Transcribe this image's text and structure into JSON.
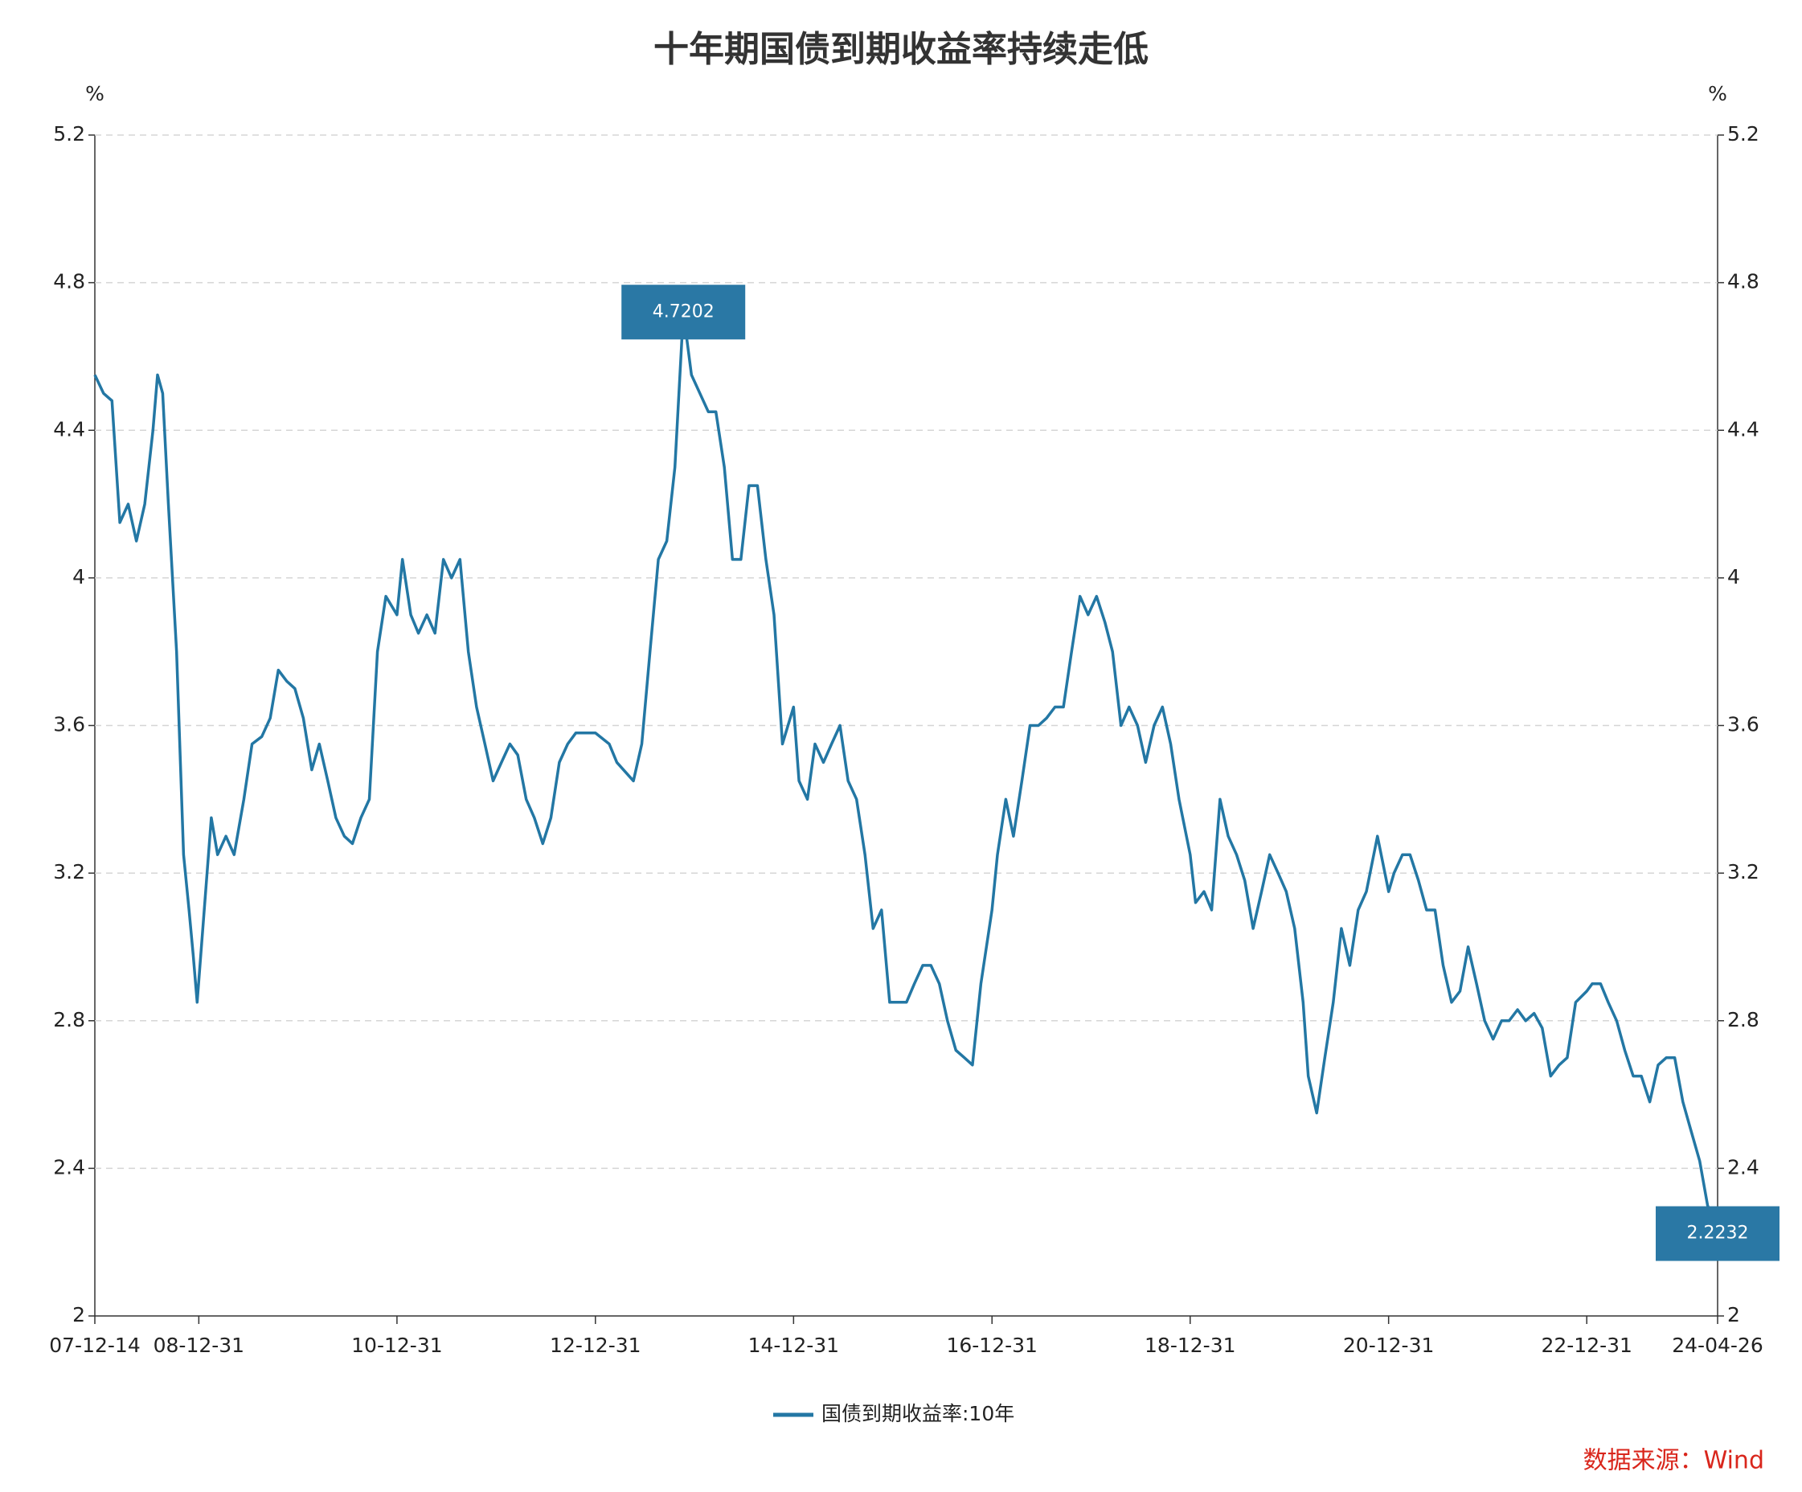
{
  "chart_data": {
    "type": "line",
    "title": "十年期国债到期收益率持续走低",
    "ylabel": "%",
    "y2label": "%",
    "source": "数据来源：Wind",
    "x": [
      "07-12-14",
      "08-01-15",
      "08-02-15",
      "08-03-15",
      "08-04-15",
      "08-05-15",
      "08-06-15",
      "08-07-15",
      "08-08-01",
      "08-08-20",
      "08-09-10",
      "08-10-10",
      "08-11-05",
      "08-11-25",
      "08-12-10",
      "08-12-25",
      "09-01-20",
      "09-02-15",
      "09-03-10",
      "09-04-10",
      "09-05-10",
      "09-06-15",
      "09-07-15",
      "09-08-20",
      "09-09-20",
      "09-10-20",
      "09-11-20",
      "09-12-20",
      "10-01-20",
      "10-02-20",
      "10-03-20",
      "10-04-20",
      "10-05-20",
      "10-06-20",
      "10-07-20",
      "10-08-20",
      "10-09-20",
      "10-10-20",
      "10-11-20",
      "10-12-31",
      "11-01-20",
      "11-02-20",
      "11-03-20",
      "11-04-20",
      "11-05-20",
      "11-06-20",
      "11-07-20",
      "11-08-20",
      "11-09-20",
      "11-10-20",
      "11-11-20",
      "11-12-20",
      "12-01-20",
      "12-02-20",
      "12-03-20",
      "12-04-20",
      "12-05-20",
      "12-06-20",
      "12-07-20",
      "12-08-20",
      "12-09-20",
      "12-10-20",
      "12-11-20",
      "12-12-31",
      "13-02-20",
      "13-03-20",
      "13-05-20",
      "13-06-20",
      "13-07-20",
      "13-08-20",
      "13-09-20",
      "13-10-20",
      "13-11-20",
      "13-12-20",
      "14-01-20",
      "14-02-20",
      "14-03-20",
      "14-04-20",
      "14-05-20",
      "14-06-20",
      "14-07-20",
      "14-08-20",
      "14-09-20",
      "14-10-20",
      "14-11-20",
      "14-12-31",
      "15-01-20",
      "15-02-20",
      "15-03-20",
      "15-04-20",
      "15-05-20",
      "15-06-20",
      "15-07-20",
      "15-08-20",
      "15-09-20",
      "15-10-20",
      "15-11-20",
      "15-12-20",
      "16-01-20",
      "16-02-20",
      "16-03-20",
      "16-04-20",
      "16-05-20",
      "16-06-20",
      "16-07-20",
      "16-08-20",
      "16-09-20",
      "16-10-20",
      "16-11-20",
      "16-12-31",
      "17-01-20",
      "17-02-20",
      "17-03-20",
      "17-04-20",
      "17-05-20",
      "17-06-20",
      "17-07-20",
      "17-08-20",
      "17-09-20",
      "17-10-20",
      "17-11-20",
      "17-12-20",
      "18-01-20",
      "18-02-20",
      "18-03-20",
      "18-04-20",
      "18-05-20",
      "18-06-20",
      "18-07-20",
      "18-08-20",
      "18-09-20",
      "18-10-20",
      "18-11-20",
      "18-12-31",
      "19-01-20",
      "19-02-20",
      "19-03-20",
      "19-04-20",
      "19-05-20",
      "19-06-20",
      "19-07-20",
      "19-08-20",
      "19-09-20",
      "19-10-20",
      "19-11-20",
      "19-12-20",
      "20-01-20",
      "20-02-20",
      "20-03-10",
      "20-04-10",
      "20-05-10",
      "20-06-10",
      "20-07-10",
      "20-08-10",
      "20-09-10",
      "20-10-10",
      "20-11-20",
      "20-12-31",
      "21-01-20",
      "21-02-20",
      "21-03-20",
      "21-04-20",
      "21-05-20",
      "21-06-20",
      "21-07-20",
      "21-08-20",
      "21-09-20",
      "21-10-20",
      "21-11-20",
      "21-12-20",
      "22-01-20",
      "22-02-20",
      "22-03-20",
      "22-04-20",
      "22-05-20",
      "22-06-20",
      "22-07-20",
      "22-08-20",
      "22-09-20",
      "22-10-20",
      "22-11-20",
      "22-12-31",
      "23-01-20",
      "23-02-20",
      "23-03-20",
      "23-04-20",
      "23-05-20",
      "23-06-20",
      "23-07-20",
      "23-08-20",
      "23-09-20",
      "23-10-20",
      "23-11-20",
      "23-12-20",
      "24-01-20",
      "24-02-20",
      "24-03-20",
      "24-04-26"
    ],
    "series": [
      {
        "name": "国债到期收益率:10年",
        "color": "#2377a4",
        "values": [
          4.55,
          4.5,
          4.48,
          4.15,
          4.2,
          4.1,
          4.2,
          4.4,
          4.55,
          4.5,
          4.2,
          3.8,
          3.25,
          3.1,
          2.98,
          2.85,
          3.1,
          3.35,
          3.25,
          3.3,
          3.25,
          3.4,
          3.55,
          3.57,
          3.62,
          3.75,
          3.72,
          3.7,
          3.62,
          3.48,
          3.55,
          3.45,
          3.35,
          3.3,
          3.28,
          3.35,
          3.4,
          3.8,
          3.95,
          3.9,
          4.05,
          3.9,
          3.85,
          3.9,
          3.85,
          4.05,
          4.0,
          4.05,
          3.8,
          3.65,
          3.55,
          3.45,
          3.5,
          3.55,
          3.52,
          3.4,
          3.35,
          3.28,
          3.35,
          3.5,
          3.55,
          3.58,
          3.58,
          3.58,
          3.55,
          3.5,
          3.45,
          3.55,
          3.8,
          4.05,
          4.1,
          4.3,
          4.7202,
          4.55,
          4.5,
          4.45,
          4.45,
          4.3,
          4.05,
          4.05,
          4.25,
          4.25,
          4.05,
          3.9,
          3.55,
          3.65,
          3.45,
          3.4,
          3.55,
          3.5,
          3.55,
          3.6,
          3.45,
          3.4,
          3.25,
          3.05,
          3.1,
          2.85,
          2.85,
          2.85,
          2.9,
          2.95,
          2.95,
          2.9,
          2.8,
          2.72,
          2.7,
          2.68,
          2.9,
          3.1,
          3.25,
          3.4,
          3.3,
          3.45,
          3.6,
          3.6,
          3.62,
          3.65,
          3.65,
          3.8,
          3.95,
          3.9,
          3.95,
          3.88,
          3.8,
          3.6,
          3.65,
          3.6,
          3.5,
          3.6,
          3.65,
          3.55,
          3.4,
          3.25,
          3.12,
          3.15,
          3.1,
          3.4,
          3.3,
          3.25,
          3.18,
          3.05,
          3.15,
          3.25,
          3.2,
          3.15,
          3.05,
          2.85,
          2.65,
          2.55,
          2.7,
          2.85,
          3.05,
          2.95,
          3.1,
          3.15,
          3.3,
          3.15,
          3.2,
          3.25,
          3.25,
          3.18,
          3.1,
          3.1,
          2.95,
          2.85,
          2.88,
          3.0,
          2.9,
          2.8,
          2.75,
          2.8,
          2.8,
          2.83,
          2.8,
          2.82,
          2.78,
          2.65,
          2.68,
          2.7,
          2.85,
          2.88,
          2.9,
          2.9,
          2.85,
          2.8,
          2.72,
          2.65,
          2.65,
          2.58,
          2.68,
          2.7,
          2.7,
          2.58,
          2.5,
          2.42,
          2.3,
          2.2232
        ]
      }
    ],
    "annotations": [
      {
        "x": "13-11-20",
        "value": 4.7202
      },
      {
        "x": "24-04-26",
        "value": 2.2232
      }
    ],
    "xlim": [
      "07-12-14",
      "24-04-26"
    ],
    "xticks": [
      "07-12-14",
      "08-12-31",
      "10-12-31",
      "12-12-31",
      "14-12-31",
      "16-12-31",
      "18-12-31",
      "20-12-31",
      "22-12-31",
      "24-04-26"
    ],
    "ylim": [
      2,
      5.2
    ],
    "yticks": [
      2,
      2.4,
      2.8,
      3.2,
      3.6,
      4,
      4.4,
      4.8,
      5.2
    ],
    "y2lim": [
      2,
      5.2
    ],
    "y2ticks": [
      2,
      2.4,
      2.8,
      3.2,
      3.6,
      4,
      4.4,
      4.8,
      5.2
    ],
    "grid": true
  }
}
